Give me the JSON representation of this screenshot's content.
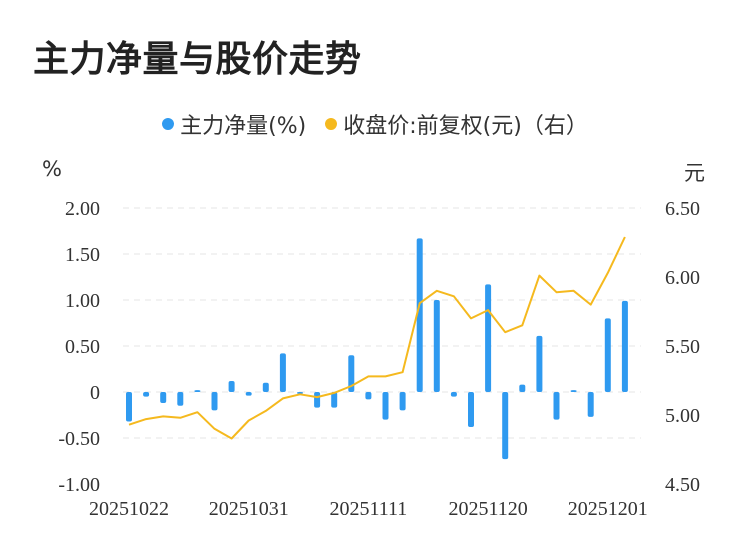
{
  "title": "主力净量与股价走势",
  "colors": {
    "bar": "#2f9af0",
    "line": "#f5b91e",
    "grid": "#e6e6e6"
  },
  "chart_data": {
    "type": "bar+line",
    "title": "主力净量与股价走势",
    "legend": [
      {
        "name": "主力净量(%)",
        "color": "#2f9af0",
        "type": "bar"
      },
      {
        "name": "收盘价:前复权(元)（右）",
        "color": "#f5b91e",
        "type": "line"
      }
    ],
    "legend_position": "top-center",
    "left_axis": {
      "unit": "%",
      "ylim": [
        -1.0,
        2.0
      ],
      "ticks": [
        "2.00",
        "1.50",
        "1.00",
        "0.50",
        "0",
        "-0.50",
        "-1.00"
      ],
      "tick_values": [
        2.0,
        1.5,
        1.0,
        0.5,
        0,
        -0.5,
        -1.0
      ]
    },
    "right_axis": {
      "unit": "元",
      "ylim": [
        4.5,
        6.5
      ],
      "ticks": [
        "6.50",
        "6.00",
        "5.50",
        "5.00",
        "4.50"
      ],
      "tick_values": [
        6.5,
        6.0,
        5.5,
        5.0,
        4.5
      ]
    },
    "x_tick_labels": [
      {
        "index": 0,
        "label": "20251022"
      },
      {
        "index": 7,
        "label": "20251031"
      },
      {
        "index": 14,
        "label": "20251111"
      },
      {
        "index": 21,
        "label": "20251120"
      },
      {
        "index": 28,
        "label": "20251201"
      }
    ],
    "grid": true,
    "bar_values": [
      -0.32,
      -0.05,
      -0.12,
      -0.15,
      0.02,
      -0.2,
      0.12,
      -0.04,
      0.1,
      0.42,
      -0.02,
      -0.17,
      -0.17,
      0.4,
      -0.08,
      -0.3,
      -0.2,
      1.67,
      1.0,
      -0.05,
      -0.38,
      1.17,
      -0.73,
      0.08,
      0.61,
      -0.3,
      0.02,
      -0.27,
      0.8,
      0.99
    ],
    "line_values": [
      4.93,
      4.97,
      4.99,
      4.98,
      5.02,
      4.9,
      4.83,
      4.96,
      5.03,
      5.12,
      5.15,
      5.13,
      5.16,
      5.21,
      5.28,
      5.28,
      5.31,
      5.81,
      5.9,
      5.86,
      5.7,
      5.76,
      5.6,
      5.65,
      6.01,
      5.89,
      5.9,
      5.8,
      6.03,
      6.29
    ]
  }
}
